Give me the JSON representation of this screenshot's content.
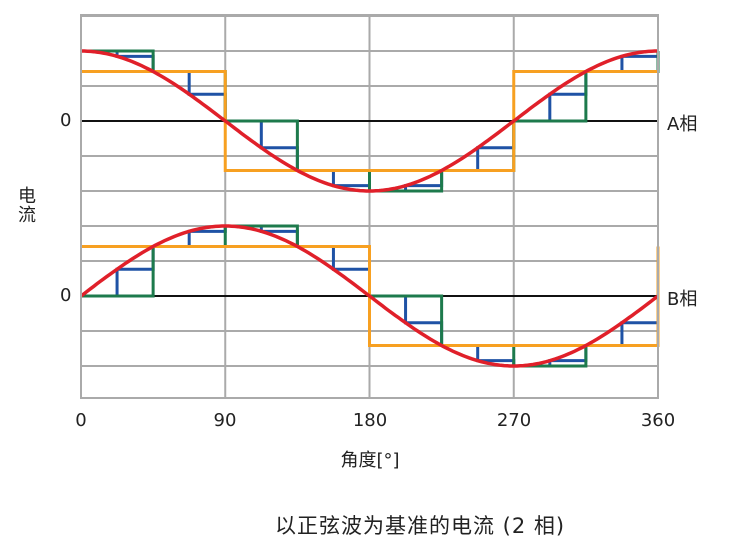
{
  "chart_data": {
    "type": "line",
    "title": "",
    "caption": "以正弦波为基准的电流 (2 相)",
    "xlabel": "角度[°]",
    "ylabel": "电流",
    "xlim": [
      0,
      360
    ],
    "xticks": [
      "0",
      "90",
      "180",
      "270",
      "360"
    ],
    "grid": true,
    "phases": [
      {
        "label": "A相",
        "zero_label": "0",
        "sine": "cos",
        "full_step": [
          0.707,
          -0.707,
          -0.707,
          0.707
        ],
        "half_step": [
          1,
          0.707,
          0,
          -0.707,
          -1,
          -0.707,
          0,
          0.707
        ],
        "quarter_step": [
          1,
          0.924,
          0.707,
          0.383,
          0,
          -0.383,
          -0.707,
          -0.924,
          -1,
          -0.924,
          -0.707,
          -0.383,
          0,
          0.383,
          0.707,
          0.924
        ]
      },
      {
        "label": "B相",
        "zero_label": "0",
        "sine": "sin",
        "full_step": [
          0.707,
          0.707,
          -0.707,
          -0.707
        ],
        "half_step": [
          0,
          0.707,
          1,
          0.707,
          0,
          -0.707,
          -1,
          -0.707
        ],
        "quarter_step": [
          0,
          0.383,
          0.707,
          0.924,
          1,
          0.924,
          0.707,
          0.383,
          0,
          -0.383,
          -0.707,
          -0.924,
          -1,
          -0.924,
          -0.707,
          -0.383
        ]
      }
    ],
    "colors": {
      "sine": "#e0202a",
      "full_step": "#f7a021",
      "half_step": "#1d7a4c",
      "quarter_step": "#1f52a5",
      "grid": "#aaaaaa",
      "zero_line": "#111111"
    }
  }
}
